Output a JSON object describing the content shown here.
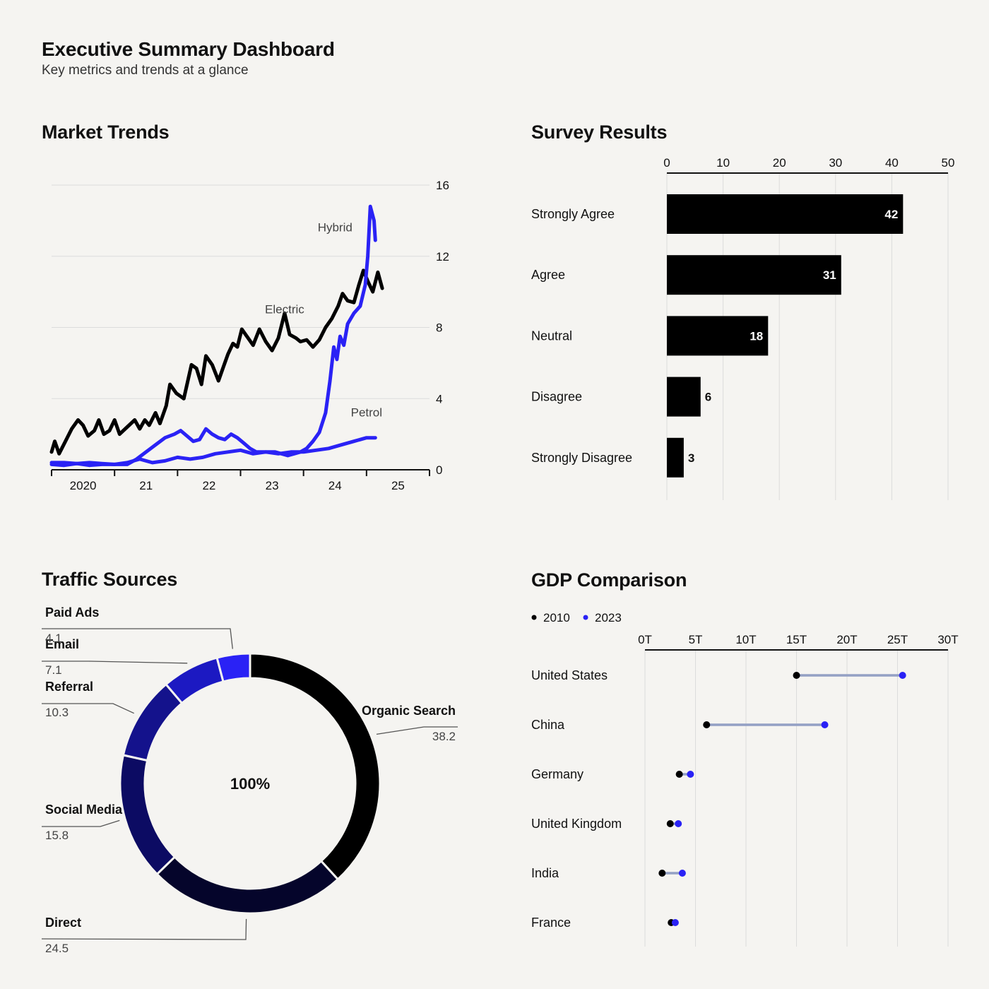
{
  "header": {
    "title": "Executive Summary Dashboard",
    "subtitle": "Key metrics and trends at a glance"
  },
  "colors": {
    "background": "#f5f4f1",
    "black": "#000000",
    "blue": "#2a22f5",
    "dumbbell_link": "#93a0c4",
    "grid": "#dcdcdc"
  },
  "panels": {
    "market": {
      "title": "Market Trends"
    },
    "survey": {
      "title": "Survey Results"
    },
    "traffic": {
      "title": "Traffic Sources"
    },
    "gdp": {
      "title": "GDP Comparison"
    }
  },
  "chart_data": [
    {
      "id": "market",
      "type": "line",
      "title": "Market Trends",
      "ylim": [
        0,
        16
      ],
      "yticks": [
        0,
        4,
        8,
        12,
        16
      ],
      "xlim": [
        2019.5,
        2025.5
      ],
      "xticks": [
        {
          "x": 2020,
          "label": "2020"
        },
        {
          "x": 2021,
          "label": "21"
        },
        {
          "x": 2022,
          "label": "22"
        },
        {
          "x": 2023,
          "label": "23"
        },
        {
          "x": 2024,
          "label": "24"
        },
        {
          "x": 2025,
          "label": "25"
        }
      ],
      "xboundaries": [
        2019.5,
        2020.5,
        2021.5,
        2022.5,
        2023.5,
        2024.5,
        2025.5
      ],
      "grid": true,
      "series": [
        {
          "name": "Electric",
          "color": "#000000",
          "label_at": [
            2023.2,
            8.8
          ],
          "points": [
            [
              2019.5,
              1.0
            ],
            [
              2019.55,
              1.6
            ],
            [
              2019.62,
              0.9
            ],
            [
              2019.72,
              1.6
            ],
            [
              2019.82,
              2.3
            ],
            [
              2019.92,
              2.8
            ],
            [
              2020.0,
              2.5
            ],
            [
              2020.08,
              1.9
            ],
            [
              2020.18,
              2.2
            ],
            [
              2020.25,
              2.8
            ],
            [
              2020.33,
              2.0
            ],
            [
              2020.42,
              2.2
            ],
            [
              2020.5,
              2.8
            ],
            [
              2020.58,
              2.0
            ],
            [
              2020.7,
              2.4
            ],
            [
              2020.82,
              2.8
            ],
            [
              2020.9,
              2.3
            ],
            [
              2020.98,
              2.8
            ],
            [
              2021.05,
              2.5
            ],
            [
              2021.15,
              3.2
            ],
            [
              2021.22,
              2.6
            ],
            [
              2021.32,
              3.6
            ],
            [
              2021.38,
              4.8
            ],
            [
              2021.48,
              4.3
            ],
            [
              2021.6,
              4.0
            ],
            [
              2021.72,
              5.9
            ],
            [
              2021.8,
              5.7
            ],
            [
              2021.88,
              4.8
            ],
            [
              2021.95,
              6.4
            ],
            [
              2022.05,
              5.9
            ],
            [
              2022.15,
              5.0
            ],
            [
              2022.22,
              5.7
            ],
            [
              2022.3,
              6.5
            ],
            [
              2022.38,
              7.1
            ],
            [
              2022.45,
              6.9
            ],
            [
              2022.52,
              7.9
            ],
            [
              2022.62,
              7.4
            ],
            [
              2022.7,
              7.0
            ],
            [
              2022.8,
              7.9
            ],
            [
              2022.9,
              7.2
            ],
            [
              2023.0,
              6.7
            ],
            [
              2023.1,
              7.4
            ],
            [
              2023.2,
              8.8
            ],
            [
              2023.28,
              7.6
            ],
            [
              2023.38,
              7.4
            ],
            [
              2023.45,
              7.2
            ],
            [
              2023.55,
              7.3
            ],
            [
              2023.65,
              6.9
            ],
            [
              2023.75,
              7.3
            ],
            [
              2023.85,
              8.0
            ],
            [
              2023.95,
              8.5
            ],
            [
              2024.05,
              9.2
            ],
            [
              2024.12,
              9.9
            ],
            [
              2024.2,
              9.5
            ],
            [
              2024.3,
              9.4
            ],
            [
              2024.38,
              10.4
            ],
            [
              2024.45,
              11.2
            ],
            [
              2024.52,
              10.6
            ],
            [
              2024.6,
              10.0
            ],
            [
              2024.68,
              11.1
            ],
            [
              2024.75,
              10.2
            ]
          ]
        },
        {
          "name": "Hybrid",
          "color": "#2a22f5",
          "label_at": [
            2024.0,
            13.4
          ],
          "points": [
            [
              2019.5,
              0.3
            ],
            [
              2019.7,
              0.25
            ],
            [
              2019.9,
              0.35
            ],
            [
              2020.1,
              0.25
            ],
            [
              2020.3,
              0.3
            ],
            [
              2020.5,
              0.3
            ],
            [
              2020.7,
              0.3
            ],
            [
              2020.85,
              0.6
            ],
            [
              2021.0,
              1.0
            ],
            [
              2021.15,
              1.4
            ],
            [
              2021.3,
              1.8
            ],
            [
              2021.45,
              2.0
            ],
            [
              2021.55,
              2.2
            ],
            [
              2021.65,
              1.9
            ],
            [
              2021.75,
              1.6
            ],
            [
              2021.85,
              1.7
            ],
            [
              2021.95,
              2.3
            ],
            [
              2022.05,
              2.0
            ],
            [
              2022.15,
              1.8
            ],
            [
              2022.25,
              1.7
            ],
            [
              2022.35,
              2.0
            ],
            [
              2022.45,
              1.8
            ],
            [
              2022.55,
              1.5
            ],
            [
              2022.65,
              1.2
            ],
            [
              2022.75,
              1.0
            ],
            [
              2022.85,
              1.0
            ],
            [
              2022.95,
              1.0
            ],
            [
              2023.05,
              1.0
            ],
            [
              2023.15,
              0.9
            ],
            [
              2023.25,
              0.8
            ],
            [
              2023.35,
              0.9
            ],
            [
              2023.45,
              1.0
            ],
            [
              2023.55,
              1.2
            ],
            [
              2023.65,
              1.6
            ],
            [
              2023.75,
              2.1
            ],
            [
              2023.85,
              3.2
            ],
            [
              2023.92,
              5.0
            ],
            [
              2023.98,
              6.9
            ],
            [
              2024.03,
              6.2
            ],
            [
              2024.08,
              7.5
            ],
            [
              2024.14,
              7.0
            ],
            [
              2024.2,
              8.2
            ],
            [
              2024.3,
              8.8
            ],
            [
              2024.4,
              9.2
            ],
            [
              2024.48,
              10.4
            ],
            [
              2024.52,
              12.0
            ],
            [
              2024.56,
              14.8
            ],
            [
              2024.62,
              14.0
            ],
            [
              2024.64,
              12.9
            ]
          ]
        },
        {
          "name": "Petrol",
          "color": "#2a22f5",
          "label_at": [
            2024.5,
            3.0
          ],
          "points": [
            [
              2019.5,
              0.4
            ],
            [
              2019.7,
              0.4
            ],
            [
              2019.9,
              0.35
            ],
            [
              2020.1,
              0.4
            ],
            [
              2020.3,
              0.35
            ],
            [
              2020.5,
              0.3
            ],
            [
              2020.7,
              0.4
            ],
            [
              2020.9,
              0.6
            ],
            [
              2021.1,
              0.4
            ],
            [
              2021.3,
              0.5
            ],
            [
              2021.5,
              0.7
            ],
            [
              2021.7,
              0.6
            ],
            [
              2021.9,
              0.7
            ],
            [
              2022.1,
              0.9
            ],
            [
              2022.3,
              1.0
            ],
            [
              2022.5,
              1.1
            ],
            [
              2022.7,
              0.9
            ],
            [
              2022.9,
              1.0
            ],
            [
              2023.1,
              0.9
            ],
            [
              2023.3,
              1.0
            ],
            [
              2023.5,
              1.0
            ],
            [
              2023.7,
              1.1
            ],
            [
              2023.9,
              1.2
            ],
            [
              2024.1,
              1.4
            ],
            [
              2024.3,
              1.6
            ],
            [
              2024.5,
              1.8
            ],
            [
              2024.64,
              1.8
            ]
          ]
        }
      ]
    },
    {
      "id": "survey",
      "type": "bar",
      "title": "Survey Results",
      "orientation": "horizontal",
      "xlim": [
        0,
        50
      ],
      "xticks": [
        0,
        10,
        20,
        30,
        40,
        50
      ],
      "categories": [
        "Strongly Agree",
        "Agree",
        "Neutral",
        "Disagree",
        "Strongly Disagree"
      ],
      "values": [
        42,
        31,
        18,
        6,
        3
      ],
      "grid": true
    },
    {
      "id": "traffic",
      "type": "pie",
      "title": "Traffic Sources",
      "donut": true,
      "center_label": "100%",
      "slices": [
        {
          "label": "Organic Search",
          "value": 38.2,
          "color": "#000000"
        },
        {
          "label": "Direct",
          "value": 24.5,
          "color": "#05052b"
        },
        {
          "label": "Social Media",
          "value": 15.8,
          "color": "#0c0b63"
        },
        {
          "label": "Referral",
          "value": 10.3,
          "color": "#14128c"
        },
        {
          "label": "Email",
          "value": 7.1,
          "color": "#1c19c2"
        },
        {
          "label": "Paid Ads",
          "value": 4.1,
          "color": "#2a22f5"
        }
      ]
    },
    {
      "id": "gdp",
      "type": "dumbbell",
      "title": "GDP Comparison",
      "xlim": [
        0,
        30
      ],
      "xticks": [
        {
          "v": 0,
          "label": "0T"
        },
        {
          "v": 5,
          "label": "5T"
        },
        {
          "v": 10,
          "label": "10T"
        },
        {
          "v": 15,
          "label": "15T"
        },
        {
          "v": 20,
          "label": "20T"
        },
        {
          "v": 25,
          "label": "25T"
        },
        {
          "v": 30,
          "label": "30T"
        }
      ],
      "legend": [
        {
          "name": "2010",
          "color": "#000000"
        },
        {
          "name": "2023",
          "color": "#2a22f5"
        }
      ],
      "categories": [
        "United States",
        "China",
        "Germany",
        "United Kingdom",
        "India",
        "France"
      ],
      "series": [
        {
          "name": "2010",
          "values": [
            15.0,
            6.1,
            3.4,
            2.5,
            1.7,
            2.6
          ]
        },
        {
          "name": "2023",
          "values": [
            25.5,
            17.8,
            4.5,
            3.3,
            3.7,
            3.0
          ]
        }
      ],
      "grid": true
    }
  ]
}
